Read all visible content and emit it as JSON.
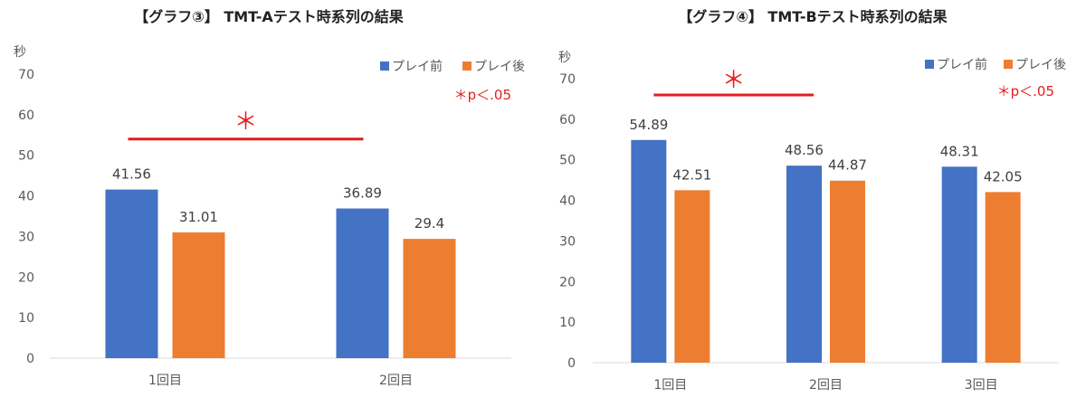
{
  "colors": {
    "series1": "#4472C4",
    "series2": "#ED7D31",
    "significance": "#E81C1C",
    "axis": "#D9D9D9",
    "text": "#595959"
  },
  "chart_data": [
    {
      "type": "bar",
      "title": "【グラフ③】 TMT-Aテスト時系列の結果",
      "ylabel": "秒",
      "xlabel": "",
      "categories": [
        "1回目",
        "2回目"
      ],
      "series": [
        {
          "name": "プレイ前",
          "values": [
            41.56,
            36.89
          ]
        },
        {
          "name": "プレイ後",
          "values": [
            31.01,
            29.4
          ]
        }
      ],
      "data_labels": [
        [
          "41.56",
          "36.89"
        ],
        [
          "31.01",
          "29.4"
        ]
      ],
      "ylim": [
        0,
        70
      ],
      "yticks": [
        "0",
        "10",
        "20",
        "30",
        "40",
        "50",
        "60",
        "70"
      ],
      "legend": "top-right",
      "grid": false,
      "note": "＊p＜.05",
      "significance": {
        "mark": "＊",
        "from_category": 0,
        "to_category": 1,
        "level": 54
      }
    },
    {
      "type": "bar",
      "title": "【グラフ④】 TMT-Bテスト時系列の結果",
      "ylabel": "秒",
      "xlabel": "",
      "categories": [
        "1回目",
        "2回目",
        "3回目"
      ],
      "series": [
        {
          "name": "プレイ前",
          "values": [
            54.89,
            48.56,
            48.31
          ]
        },
        {
          "name": "プレイ後",
          "values": [
            42.51,
            44.87,
            42.05
          ]
        }
      ],
      "data_labels": [
        [
          "54.89",
          "48.56",
          "48.31"
        ],
        [
          "42.51",
          "44.87",
          "42.05"
        ]
      ],
      "ylim": [
        0,
        70
      ],
      "yticks": [
        "0",
        "10",
        "20",
        "30",
        "40",
        "50",
        "60",
        "70"
      ],
      "legend": "top-right",
      "grid": false,
      "note": "＊p＜.05",
      "significance": {
        "mark": "＊",
        "from_category": 0,
        "to_category": 1,
        "level": 66
      }
    }
  ]
}
